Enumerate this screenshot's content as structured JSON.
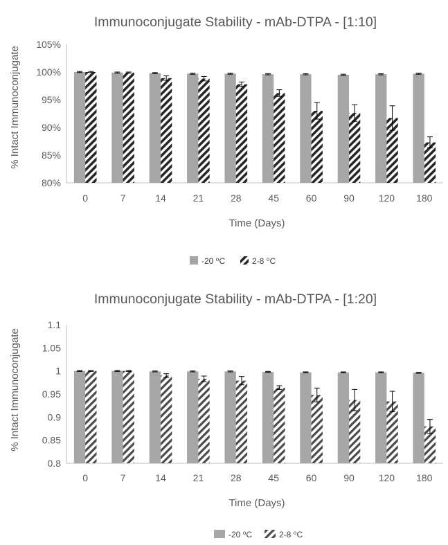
{
  "chart_data": [
    {
      "type": "bar",
      "title": "Immunoconjugate Stability - mAb-DTPA - [1:10]",
      "xlabel": "Time (Days)",
      "ylabel": "% Intact Immunoconjugate",
      "categories": [
        "0",
        "7",
        "14",
        "21",
        "28",
        "45",
        "60",
        "90",
        "120",
        "180"
      ],
      "ylim": [
        0.8,
        1.05
      ],
      "yticks": [
        0.8,
        0.85,
        0.9,
        0.95,
        1.0,
        1.05
      ],
      "ytick_labels": [
        "80%",
        "85%",
        "90%",
        "95%",
        "100%",
        "105%"
      ],
      "grid": false,
      "legend_position": "bottom",
      "series": [
        {
          "name": "-20 ⁰C",
          "fill": "solid",
          "color": "#a6a6a6",
          "values": [
            1.0,
            0.999,
            0.998,
            0.997,
            0.997,
            0.996,
            0.996,
            0.995,
            0.996,
            0.997
          ],
          "errors": [
            0.001,
            0.001,
            0.001,
            0.001,
            0.001,
            0.001,
            0.001,
            0.001,
            0.001,
            0.001
          ]
        },
        {
          "name": "2-8 ⁰C",
          "fill": "hatch",
          "color": "#262626",
          "values": [
            1.0,
            0.999,
            0.989,
            0.988,
            0.978,
            0.962,
            0.93,
            0.926,
            0.917,
            0.873
          ],
          "errors": [
            0.001,
            0.001,
            0.004,
            0.004,
            0.004,
            0.006,
            0.015,
            0.015,
            0.022,
            0.01
          ]
        }
      ]
    },
    {
      "type": "bar",
      "title": "Immunoconjugate Stability - mAb-DTPA - [1:20]",
      "xlabel": "Time (Days)",
      "ylabel": "% Intact Immunoconjugate",
      "categories": [
        "0",
        "7",
        "14",
        "21",
        "28",
        "45",
        "60",
        "90",
        "120",
        "180"
      ],
      "ylim": [
        0.8,
        1.1
      ],
      "yticks": [
        0.8,
        0.85,
        0.9,
        0.95,
        1.0,
        1.05,
        1.1
      ],
      "ytick_labels": [
        "0.8",
        "0.85",
        "0.9",
        "0.95",
        "1",
        "1.05",
        "1.1"
      ],
      "grid": false,
      "legend_position": "bottom",
      "series": [
        {
          "name": "-20 ⁰C",
          "fill": "solid",
          "color": "#a6a6a6",
          "values": [
            1.0,
            1.0,
            0.999,
            0.999,
            0.999,
            0.998,
            0.997,
            0.997,
            0.997,
            0.996
          ],
          "errors": [
            0.001,
            0.001,
            0.001,
            0.001,
            0.001,
            0.001,
            0.001,
            0.001,
            0.001,
            0.001
          ]
        },
        {
          "name": "2-8 ⁰C",
          "fill": "hatch",
          "color": "#262626",
          "values": [
            1.0,
            1.0,
            0.99,
            0.983,
            0.979,
            0.964,
            0.948,
            0.937,
            0.934,
            0.88
          ],
          "errors": [
            0.001,
            0.001,
            0.004,
            0.006,
            0.009,
            0.004,
            0.015,
            0.023,
            0.022,
            0.015
          ]
        }
      ]
    }
  ]
}
